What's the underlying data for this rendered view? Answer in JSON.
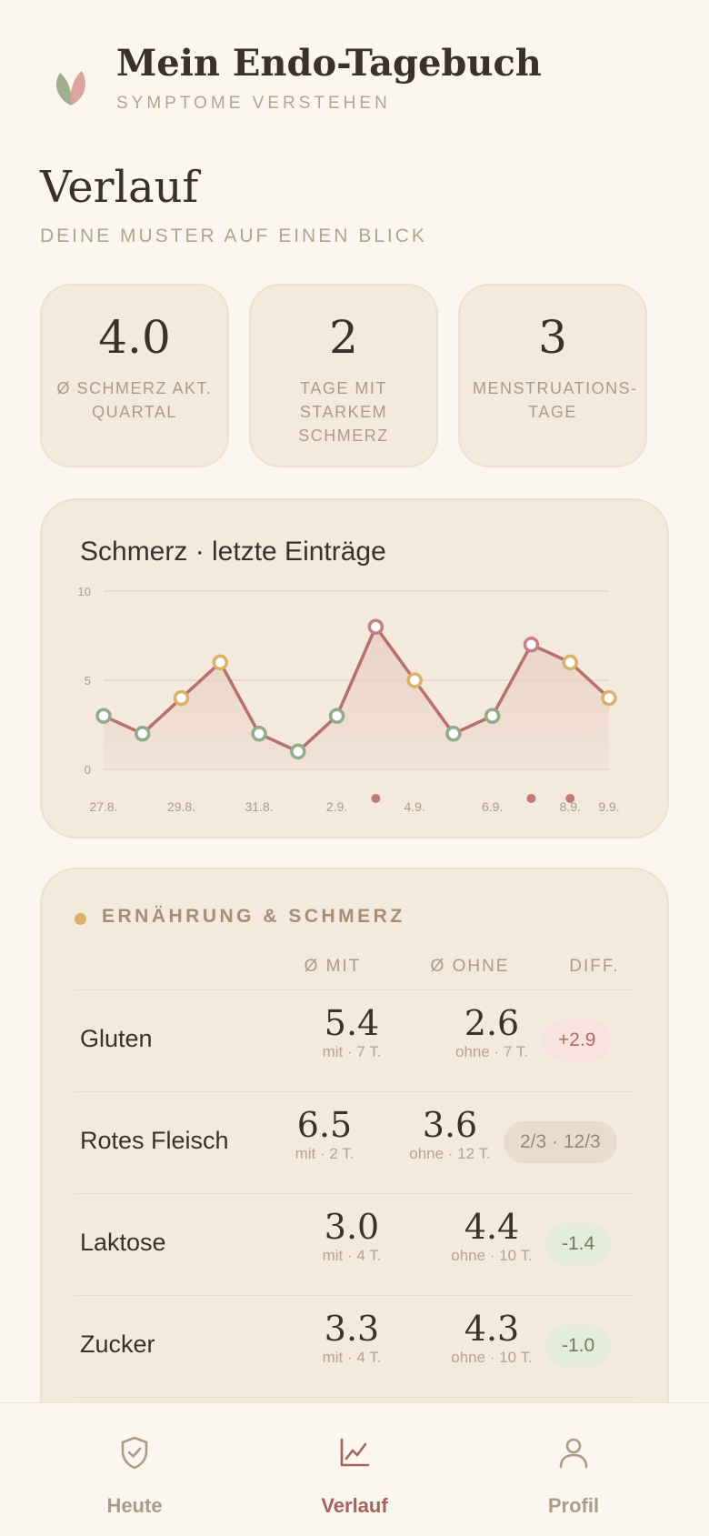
{
  "header": {
    "app_title": "Mein Endo-Tagebuch",
    "app_subtitle": "SYMPTOME VERSTEHEN",
    "logo_icon": "two-leaves-logo"
  },
  "page": {
    "title": "Verlauf",
    "subtitle": "DEINE MUSTER AUF EINEN BLICK"
  },
  "stats": [
    {
      "value": "4.0",
      "label": "Ø SCHMERZ AKT. QUARTAL"
    },
    {
      "value": "2",
      "label": "TAGE MIT STARKEM SCHMERZ"
    },
    {
      "value": "3",
      "label": "MENSTRUATIONS-TAGE"
    }
  ],
  "chart_data": {
    "type": "area",
    "title": "Schmerz · letzte Einträge",
    "ylim": [
      0,
      10
    ],
    "y_ticks": [
      "0",
      "5",
      "10"
    ],
    "x_tick_labels": [
      "27.8.",
      "29.8.",
      "31.8.",
      "2.9.",
      "4.9.",
      "6.9.",
      "8.9.",
      "9.9."
    ],
    "grid": true,
    "series": [
      {
        "x": [
          "27.8.",
          "28.8.",
          "29.8.",
          "30.8.",
          "31.8.",
          "1.9.",
          "2.9.",
          "3.9.",
          "4.9.",
          "5.9.",
          "6.9.",
          "7.9.",
          "8.9.",
          "9.9."
        ],
        "values": [
          3,
          2,
          4,
          6,
          2,
          1,
          3,
          8,
          5,
          2,
          3,
          7,
          6,
          4
        ],
        "point_level": [
          "low",
          "low",
          "mid",
          "mid",
          "low",
          "low",
          "low",
          "high",
          "mid",
          "low",
          "low",
          "high",
          "mid",
          "mid"
        ]
      }
    ],
    "menstruation_days": [
      "3.9.",
      "7.9.",
      "8.9."
    ],
    "colors": {
      "line": "#b7716b",
      "low": "#93ab89",
      "mid": "#dbb06a",
      "high": "#c58086",
      "fill": "#e9cfc2",
      "menstruation": "#c07a76"
    }
  },
  "diet": {
    "heading": "ERNÄHRUNG & SCHMERZ",
    "columns": [
      "Ø MIT",
      "Ø OHNE",
      "DIFF."
    ],
    "rows": [
      {
        "name": "Gluten",
        "with": "5.4",
        "with_sub": "mit · 7 T.",
        "without": "2.6",
        "without_sub": "ohne · 7 T.",
        "diff": "+2.9",
        "diff_type": "pos"
      },
      {
        "name": "Rotes Fleisch",
        "with": "6.5",
        "with_sub": "mit · 2 T.",
        "without": "3.6",
        "without_sub": "ohne · 12 T.",
        "diff": "2/3 · 12/3",
        "diff_type": "neu"
      },
      {
        "name": "Laktose",
        "with": "3.0",
        "with_sub": "mit · 4 T.",
        "without": "4.4",
        "without_sub": "ohne · 10 T.",
        "diff": "-1.4",
        "diff_type": "neg"
      },
      {
        "name": "Zucker",
        "with": "3.3",
        "with_sub": "mit · 4 T.",
        "without": "4.3",
        "without_sub": "ohne · 10 T.",
        "diff": "-1.0",
        "diff_type": "neg"
      }
    ]
  },
  "nav": {
    "items": [
      {
        "label": "Heute",
        "icon": "shield-check-icon",
        "active": false
      },
      {
        "label": "Verlauf",
        "icon": "line-chart-icon",
        "active": true
      },
      {
        "label": "Profil",
        "icon": "user-icon",
        "active": false
      }
    ],
    "active_color": "#a6625c",
    "inactive_color": "#ac9c86"
  }
}
